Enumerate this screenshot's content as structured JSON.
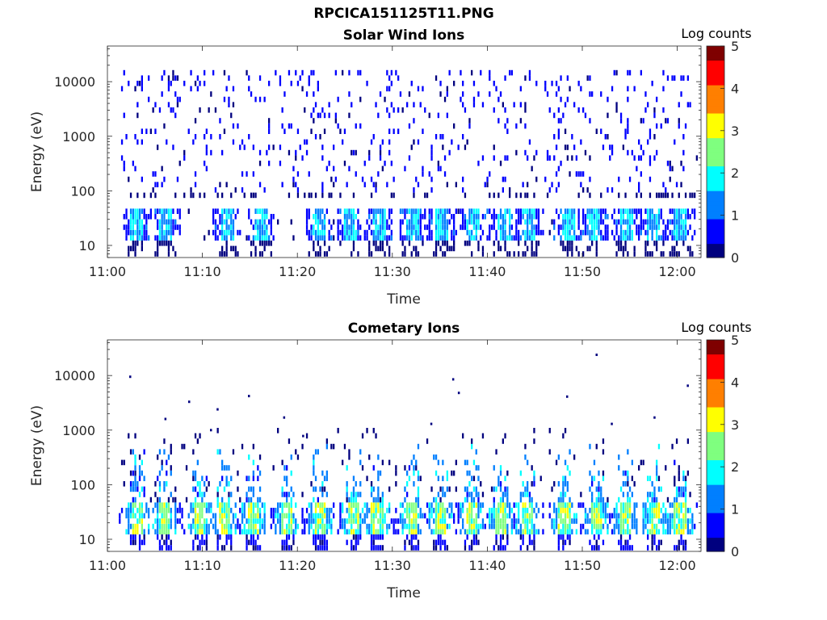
{
  "figure": {
    "title": "RPCICA151125T11.PNG"
  },
  "colormap": [
    "#00007f",
    "#0000ff",
    "#007fff",
    "#00ffff",
    "#7fff7f",
    "#ffff00",
    "#ff7f00",
    "#ff0000",
    "#7f0000"
  ],
  "chart_data": [
    {
      "type": "heatmap",
      "title": "Solar Wind Ions",
      "xlabel": "Time",
      "ylabel": "Energy (eV)",
      "colorbar_label": "Log counts",
      "x_ticks": [
        "11:00",
        "11:10",
        "11:20",
        "11:30",
        "11:40",
        "11:50",
        "12:00"
      ],
      "y_ticks": [
        "10",
        "100",
        "1000",
        "10000"
      ],
      "colorbar_ticks": [
        "0",
        "1",
        "2",
        "3",
        "4",
        "5"
      ],
      "y_scale": "log",
      "xlim_minutes": [
        0,
        62.5
      ],
      "ylim_eV": [
        6,
        45000
      ],
      "clim": [
        0,
        5
      ],
      "data_start_minutes": 1.2,
      "data_end_minutes": 62.2,
      "peak_times_minutes": [
        3.0,
        6.1,
        12.5,
        16.1,
        22.2,
        25.5,
        28.5,
        32.1,
        35.2,
        38.5,
        41.6,
        44.3,
        48.4,
        51.1,
        54.5,
        57.4,
        60.3
      ],
      "background_energy_range_eV": [
        100,
        12000
      ],
      "peak_energy_range_eV": [
        12,
        45
      ],
      "peak_log_counts": 1.8,
      "background_log_counts": 0.2
    },
    {
      "type": "heatmap",
      "title": "Cometary Ions",
      "xlabel": "Time",
      "ylabel": "Energy (eV)",
      "colorbar_label": "Log counts",
      "x_ticks": [
        "11:00",
        "11:10",
        "11:20",
        "11:30",
        "11:40",
        "11:50",
        "12:00"
      ],
      "y_ticks": [
        "10",
        "100",
        "1000",
        "10000"
      ],
      "colorbar_ticks": [
        "0",
        "1",
        "2",
        "3",
        "4",
        "5"
      ],
      "y_scale": "log",
      "xlim_minutes": [
        0,
        62.5
      ],
      "ylim_eV": [
        6,
        45000
      ],
      "clim": [
        0,
        5
      ],
      "data_start_minutes": 1.2,
      "data_end_minutes": 62.2,
      "peak_times_minutes": [
        3.0,
        5.9,
        9.7,
        12.3,
        15.3,
        18.9,
        22.4,
        25.8,
        28.3,
        32.0,
        34.9,
        38.3,
        41.4,
        44.2,
        48.0,
        51.4,
        54.5,
        57.5,
        60.2
      ],
      "peak_energy_range_eV": [
        12,
        40
      ],
      "peak_log_counts": 2.7,
      "plume_top_energy_eV": 500,
      "scattered_points": [
        {
          "t": 2.3,
          "e": 9500
        },
        {
          "t": 8.5,
          "e": 3300
        },
        {
          "t": 11.5,
          "e": 2400
        },
        {
          "t": 14.8,
          "e": 4200
        },
        {
          "t": 18.5,
          "e": 1700
        },
        {
          "t": 36.3,
          "e": 8500
        },
        {
          "t": 36.9,
          "e": 4800
        },
        {
          "t": 48.3,
          "e": 4100
        },
        {
          "t": 51.4,
          "e": 24000
        },
        {
          "t": 61.0,
          "e": 6500
        },
        {
          "t": 6.0,
          "e": 1600
        },
        {
          "t": 20.5,
          "e": 780
        },
        {
          "t": 34.0,
          "e": 1300
        },
        {
          "t": 53.0,
          "e": 1300
        },
        {
          "t": 57.5,
          "e": 1700
        },
        {
          "t": 10.8,
          "e": 1000
        }
      ]
    }
  ]
}
